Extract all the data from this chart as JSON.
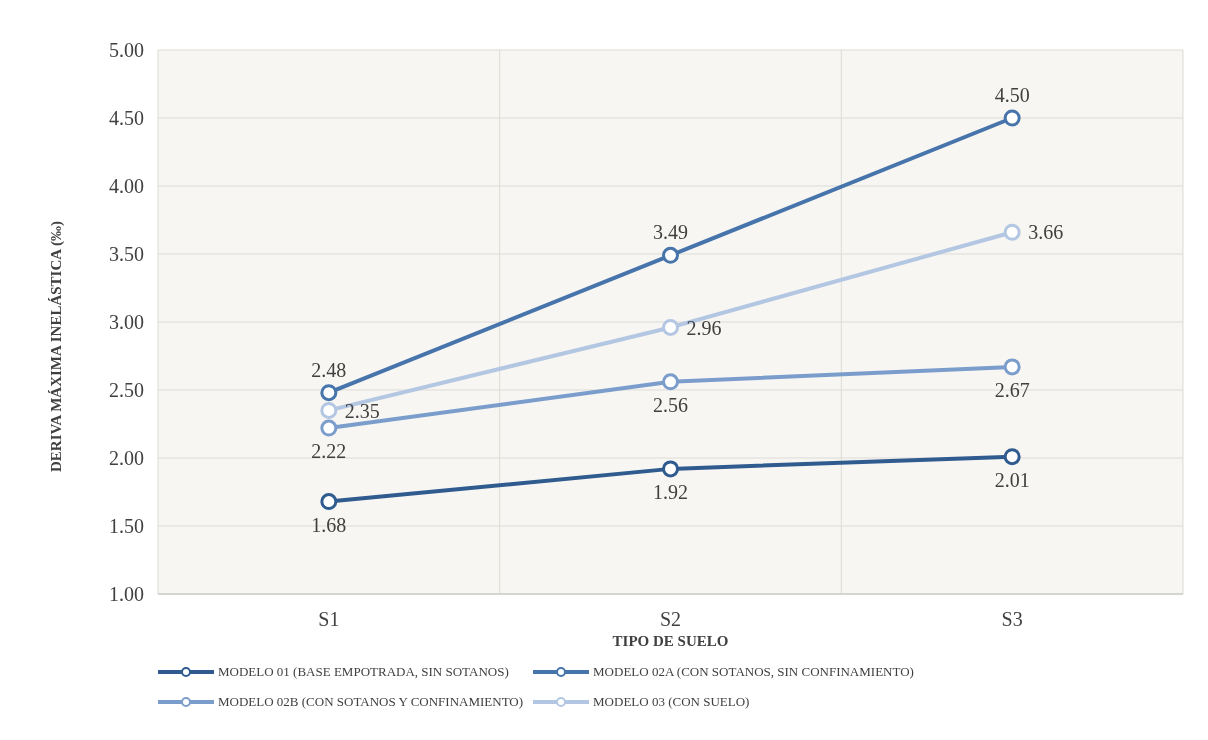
{
  "chart_data": {
    "type": "line",
    "xlabel": "TIPO DE SUELO",
    "ylabel": "DERIVA MÁXIMA INELÁSTICA (‰)",
    "categories": [
      "S1",
      "S2",
      "S3"
    ],
    "series": [
      {
        "name": "MODELO 01 (BASE EMPOTRADA, SIN SOTANOS)",
        "color": "#2f5b8f",
        "values": [
          1.68,
          1.92,
          2.01
        ],
        "value_labels": [
          "1.68",
          "1.92",
          "2.01"
        ]
      },
      {
        "name": "MODELO 02A (CON SOTANOS, SIN CONFINAMIENTO)",
        "color": "#4674ab",
        "values": [
          2.48,
          3.49,
          4.5
        ],
        "value_labels": [
          "2.48",
          "3.49",
          "4.50"
        ]
      },
      {
        "name": "MODELO 02B (CON SOTANOS Y CONFINAMIENTO)",
        "color": "#7b9dcc",
        "values": [
          2.22,
          2.56,
          2.67
        ],
        "value_labels": [
          "2.22",
          "2.56",
          "2.67"
        ]
      },
      {
        "name": "MODELO 03 (CON SUELO)",
        "color": "#b3c6e2",
        "values": [
          2.35,
          2.96,
          3.66
        ],
        "value_labels": [
          "2.35",
          "2.96",
          "3.66"
        ]
      }
    ],
    "ylim": [
      1,
      5
    ],
    "yticks": [
      {
        "value": 1,
        "label": "1.00"
      },
      {
        "value": 1.5,
        "label": "1.50"
      },
      {
        "value": 2,
        "label": "2.00"
      },
      {
        "value": 2.5,
        "label": "2.50"
      },
      {
        "value": 3,
        "label": "3.00"
      },
      {
        "value": 3.5,
        "label": "3.50"
      },
      {
        "value": 4,
        "label": "4.00"
      },
      {
        "value": 4.5,
        "label": "4.50"
      },
      {
        "value": 5,
        "label": "5.00"
      }
    ],
    "grid": true,
    "legend": "bottom",
    "marker": "circle",
    "line_style": "solid"
  }
}
